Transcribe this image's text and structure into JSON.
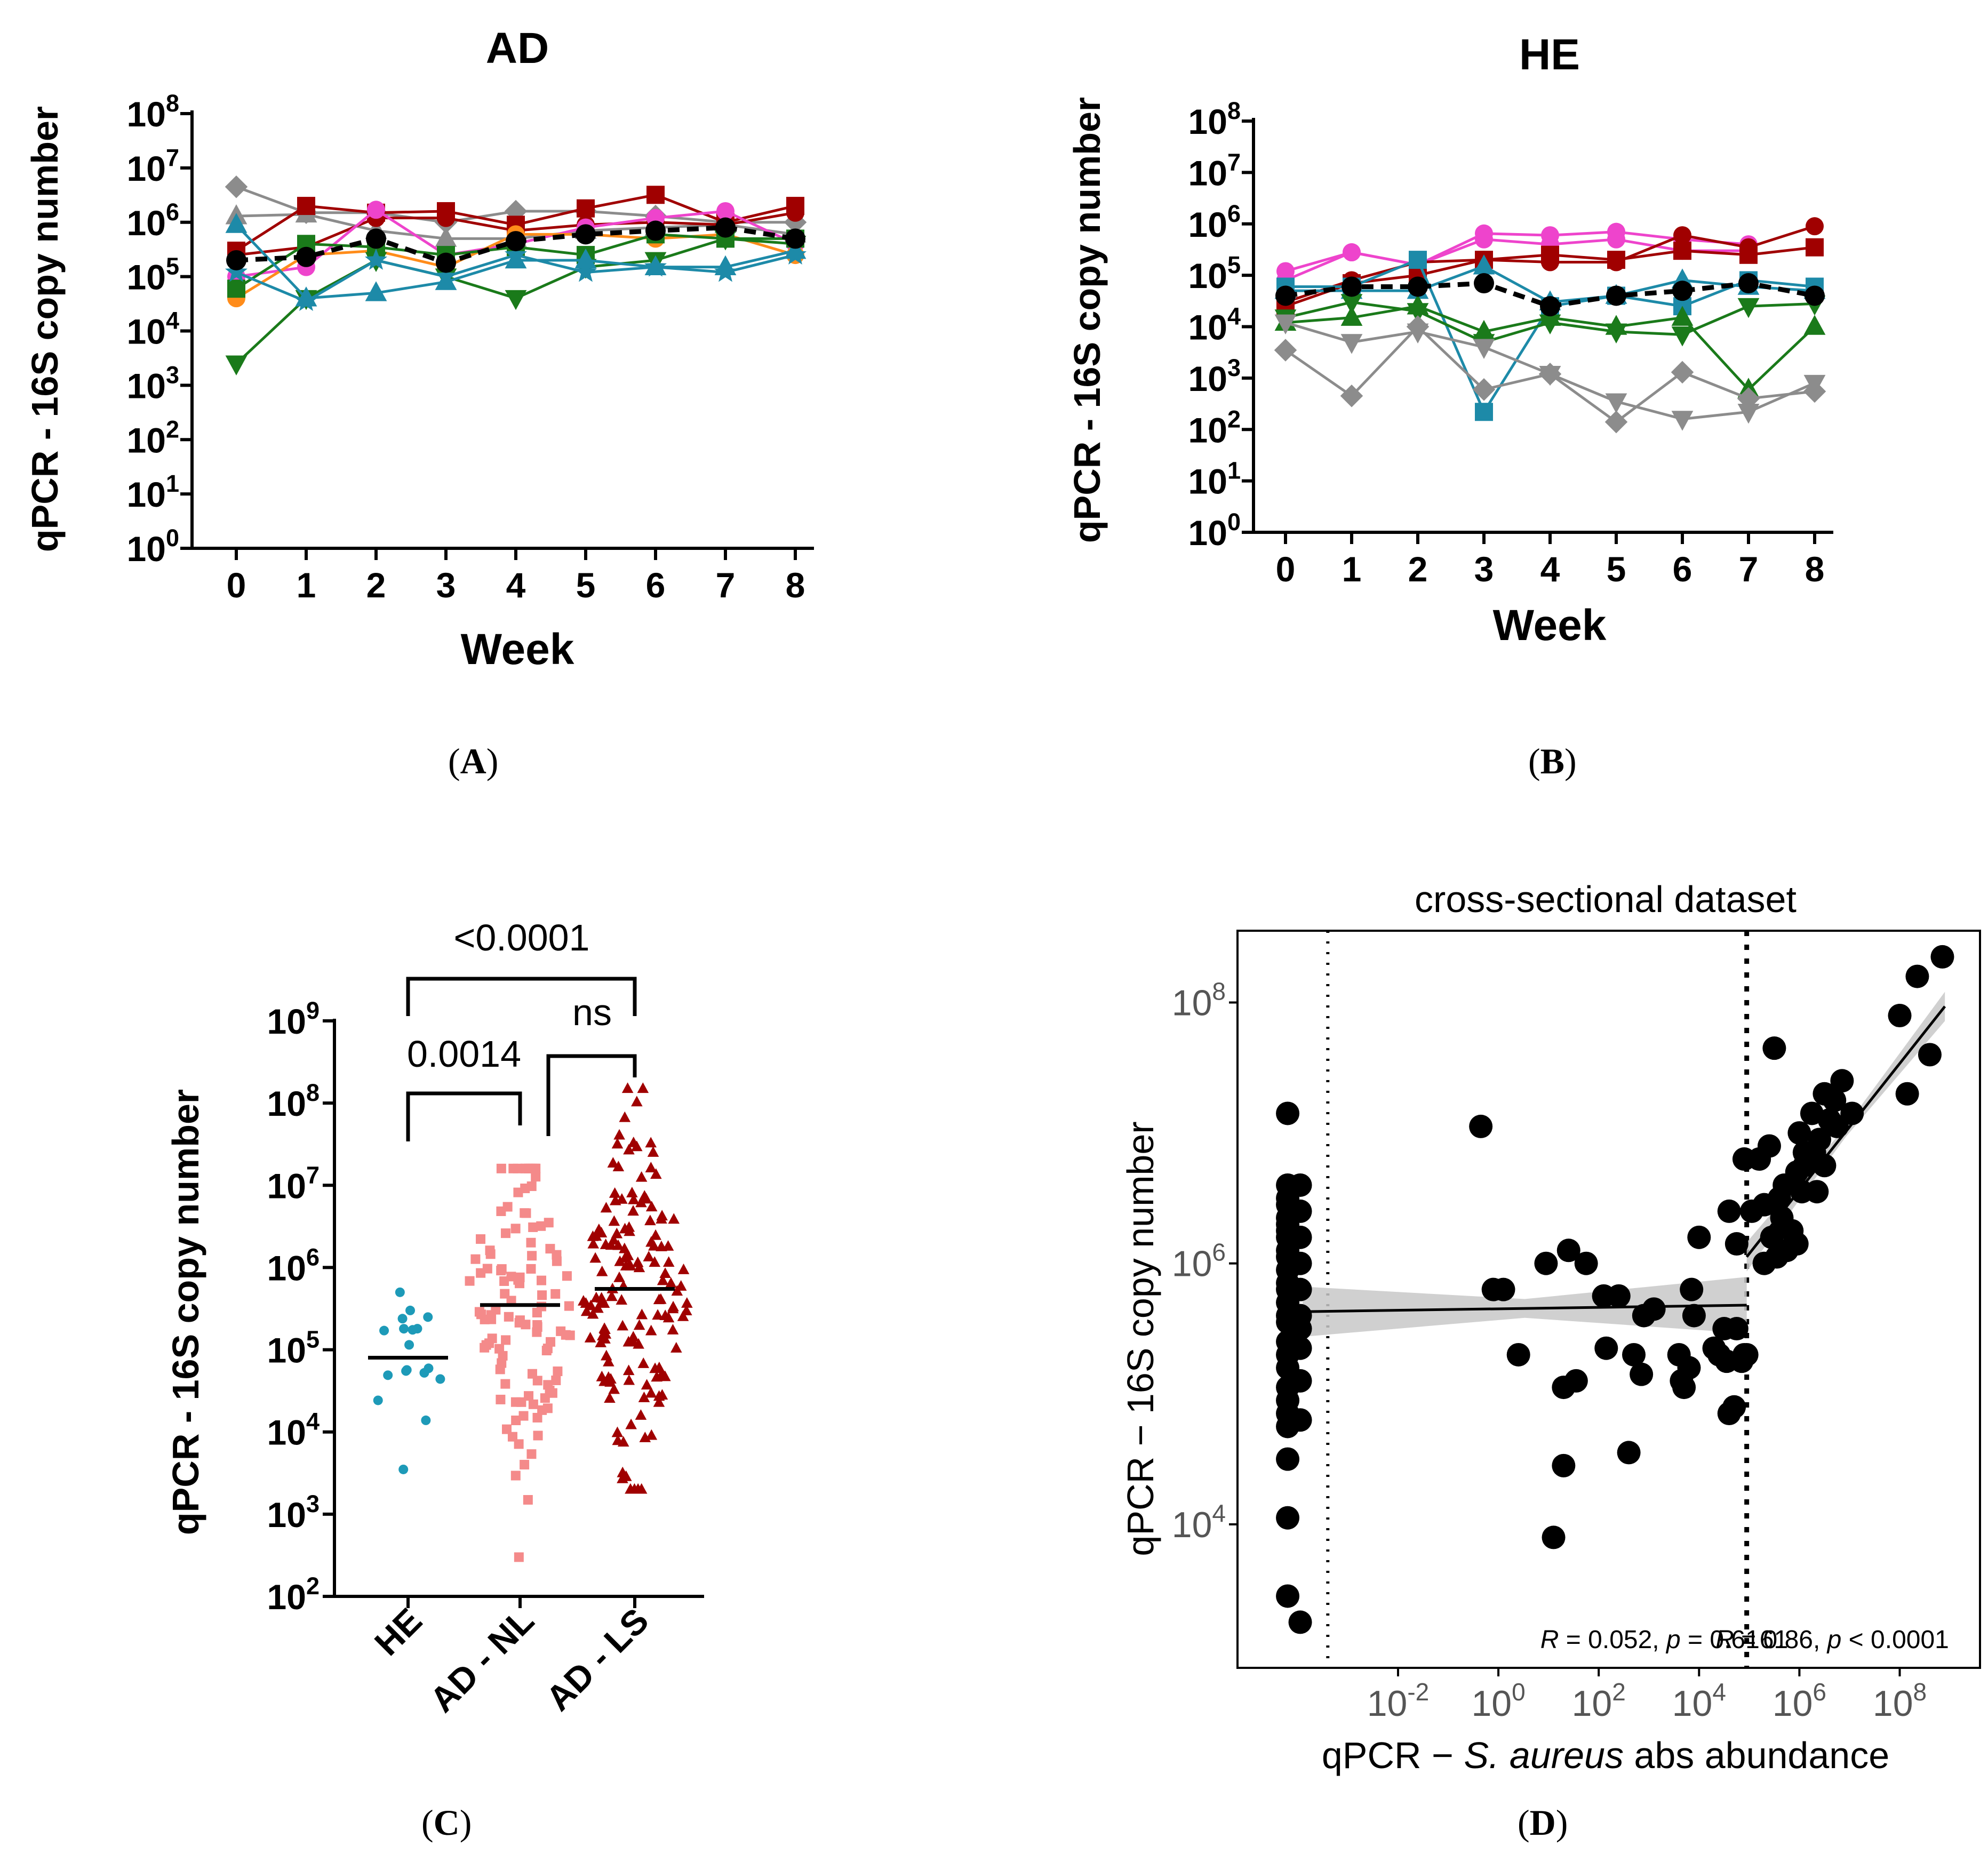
{
  "chart_data": [
    {
      "id": "A",
      "type": "line",
      "title": "AD",
      "xlabel": "Week",
      "ylabel": "qPCR - 16S copy number",
      "yscale": "log10",
      "ylim": [
        1,
        100000000
      ],
      "x": [
        0,
        1,
        2,
        3,
        4,
        5,
        6,
        7,
        8
      ],
      "yticks": [
        [
          "10",
          "0"
        ],
        [
          "10",
          "1"
        ],
        [
          "10",
          "2"
        ],
        [
          "10",
          "3"
        ],
        [
          "10",
          "4"
        ],
        [
          "10",
          "5"
        ],
        [
          "10",
          "6"
        ],
        [
          "10",
          "7"
        ],
        [
          "10",
          "8"
        ]
      ],
      "series": [
        {
          "name": "gray-diamond",
          "color": "#8c8c8c",
          "marker": "diamond",
          "values": [
            4500000,
            1500000,
            1500000,
            1000000,
            1600000,
            1600000,
            1300000,
            1000000,
            1000000
          ]
        },
        {
          "name": "gray-triangle",
          "color": "#8c8c8c",
          "marker": "triangle",
          "values": [
            1300000,
            1400000,
            700000,
            500000,
            500000,
            700000,
            800000,
            900000,
            600000
          ]
        },
        {
          "name": "darkred-square",
          "color": "#a00000",
          "marker": "square",
          "values": [
            300000,
            2000000,
            1500000,
            1600000,
            900000,
            1800000,
            3200000,
            1000000,
            2000000
          ]
        },
        {
          "name": "darkred-circle",
          "color": "#a00000",
          "marker": "circle",
          "values": [
            250000,
            350000,
            1200000,
            1200000,
            700000,
            900000,
            1000000,
            900000,
            1500000
          ]
        },
        {
          "name": "pink-circle",
          "color": "#ee44cc",
          "marker": "circle",
          "values": [
            100000,
            150000,
            1700000,
            250000,
            400000,
            800000,
            1200000,
            1600000,
            400000
          ]
        },
        {
          "name": "orange-hexagon",
          "color": "#ff8c1a",
          "marker": "circle",
          "values": [
            40000,
            250000,
            300000,
            150000,
            600000,
            600000,
            500000,
            600000,
            250000
          ]
        },
        {
          "name": "green-square",
          "color": "#1a7a1a",
          "marker": "square",
          "values": [
            60000,
            400000,
            350000,
            250000,
            350000,
            250000,
            600000,
            500000,
            500000
          ]
        },
        {
          "name": "green-triangle-down",
          "color": "#1a7a1a",
          "marker": "triangle-down",
          "values": [
            2500,
            40000,
            200000,
            100000,
            40000,
            150000,
            200000,
            500000,
            400000
          ]
        },
        {
          "name": "teal-triangle",
          "color": "#1d8aa8",
          "marker": "triangle",
          "values": [
            900000,
            40000,
            50000,
            80000,
            200000,
            200000,
            150000,
            150000,
            300000
          ]
        },
        {
          "name": "teal-star",
          "color": "#1d8aa8",
          "marker": "star",
          "values": [
            120000,
            35000,
            200000,
            100000,
            250000,
            120000,
            150000,
            120000,
            250000
          ]
        },
        {
          "name": "black-dashed-mean",
          "color": "#000000",
          "marker": "circle",
          "dashed": true,
          "values": [
            200000,
            230000,
            500000,
            180000,
            450000,
            600000,
            700000,
            800000,
            500000
          ]
        }
      ]
    },
    {
      "id": "B",
      "type": "line",
      "title": "HE",
      "xlabel": "Week",
      "ylabel": "qPCR - 16S copy number",
      "yscale": "log10",
      "ylim": [
        1,
        100000000
      ],
      "x": [
        0,
        1,
        2,
        3,
        4,
        5,
        6,
        7,
        8
      ],
      "yticks": [
        [
          "10",
          "0"
        ],
        [
          "10",
          "1"
        ],
        [
          "10",
          "2"
        ],
        [
          "10",
          "3"
        ],
        [
          "10",
          "4"
        ],
        [
          "10",
          "5"
        ],
        [
          "10",
          "6"
        ],
        [
          "10",
          "7"
        ],
        [
          "10",
          "8"
        ]
      ],
      "series": [
        {
          "name": "pink-circle",
          "color": "#ee44cc",
          "marker": "circle",
          "values": [
            120000,
            280000,
            160000,
            650000,
            600000,
            700000,
            500000,
            400000,
            null
          ]
        },
        {
          "name": "pink-line-2",
          "color": "#ee44cc",
          "marker": "circle",
          "values": [
            80000,
            280000,
            160000,
            500000,
            400000,
            500000,
            300000,
            300000,
            null
          ]
        },
        {
          "name": "darkred-circle",
          "color": "#a00000",
          "marker": "circle",
          "values": [
            30000,
            80000,
            180000,
            200000,
            180000,
            180000,
            600000,
            350000,
            900000
          ]
        },
        {
          "name": "darkred-square",
          "color": "#a00000",
          "marker": "square",
          "values": [
            25000,
            70000,
            100000,
            200000,
            250000,
            200000,
            300000,
            250000,
            350000
          ]
        },
        {
          "name": "teal-square",
          "color": "#1d8aa8",
          "marker": "square",
          "values": [
            60000,
            60000,
            200000,
            220,
            25000,
            40000,
            25000,
            80000,
            60000
          ]
        },
        {
          "name": "teal-triangle",
          "color": "#1d8aa8",
          "marker": "triangle",
          "values": [
            50000,
            50000,
            50000,
            150000,
            30000,
            40000,
            80000,
            60000,
            50000
          ]
        },
        {
          "name": "green-triangle",
          "color": "#1a7a1a",
          "marker": "triangle",
          "values": [
            12000,
            15000,
            25000,
            8000,
            15000,
            10000,
            15000,
            600,
            10000
          ]
        },
        {
          "name": "green-triangle-down",
          "color": "#1a7a1a",
          "marker": "triangle-down",
          "values": [
            15000,
            30000,
            20000,
            5000,
            12000,
            8000,
            7000,
            25000,
            28000
          ]
        },
        {
          "name": "gray-diamond",
          "color": "#8c8c8c",
          "marker": "diamond",
          "values": [
            3500,
            450,
            10000,
            600,
            1200,
            140,
            1300,
            400,
            550
          ]
        },
        {
          "name": "gray-triangle-down",
          "color": "#8c8c8c",
          "marker": "triangle-down",
          "values": [
            12000,
            5000,
            8000,
            4000,
            1200,
            350,
            160,
            220,
            800
          ]
        },
        {
          "name": "black-dashed-mean",
          "color": "#000000",
          "marker": "circle",
          "dashed": true,
          "values": [
            40000,
            60000,
            60000,
            70000,
            25000,
            40000,
            50000,
            70000,
            40000
          ]
        }
      ]
    },
    {
      "id": "C",
      "type": "scatter",
      "ylabel": "qPCR - 16S copy number",
      "yscale": "log10",
      "ylim": [
        100,
        1000000000
      ],
      "yticks": [
        [
          "10",
          "2"
        ],
        [
          "10",
          "3"
        ],
        [
          "10",
          "4"
        ],
        [
          "10",
          "5"
        ],
        [
          "10",
          "6"
        ],
        [
          "10",
          "7"
        ],
        [
          "10",
          "8"
        ],
        [
          "10",
          "9"
        ]
      ],
      "categories": [
        "HE",
        "AD - NL",
        "AD - LS"
      ],
      "groups": [
        {
          "name": "HE",
          "color": "#1d9ab8",
          "marker": "circle",
          "median": 80000,
          "min": 3500,
          "max": 500000,
          "n": 18
        },
        {
          "name": "AD - NL",
          "color": "#f48a8a",
          "marker": "square",
          "median": 350000,
          "min": 300,
          "max": 16000000,
          "n": 110
        },
        {
          "name": "AD - LS",
          "color": "#a00000",
          "marker": "triangle",
          "median": 550000,
          "min": 2000,
          "max": 150000000,
          "n": 150
        }
      ],
      "comparisons": [
        {
          "groups": [
            "HE",
            "AD - NL"
          ],
          "label": "0.0014"
        },
        {
          "groups": [
            "AD - NL",
            "AD - LS"
          ],
          "label": "ns"
        },
        {
          "groups": [
            "HE",
            "AD - LS"
          ],
          "label": "<0.0001"
        }
      ]
    },
    {
      "id": "D",
      "type": "scatter",
      "title": "cross-sectional dataset",
      "xlabel_pre": "qPCR − ",
      "xlabel_italic": "S. aureus",
      "xlabel_post": " abs abundance",
      "ylabel": "qPCR − 16S copy number",
      "xscale": "log10",
      "yscale": "log10",
      "xlim_log10": [
        -5.2,
        9.6
      ],
      "ylim_log10": [
        2.9,
        8.55
      ],
      "xticks": [
        [
          "10",
          "-2"
        ],
        [
          "10",
          "0"
        ],
        [
          "10",
          "2"
        ],
        [
          "10",
          "4"
        ],
        [
          "10",
          "6"
        ],
        [
          "10",
          "8"
        ]
      ],
      "yticks": [
        [
          "10",
          "4"
        ],
        [
          "10",
          "6"
        ],
        [
          "10",
          "8"
        ]
      ],
      "vlines_log10": [
        -3.4,
        4.95
      ],
      "fits": [
        {
          "from_log10": -3.9,
          "to_log10": 4.95,
          "y_from_log10": 5.63,
          "y_to_log10": 5.68,
          "band": 0.12
        },
        {
          "from_log10": 4.95,
          "to_log10": 8.9,
          "y_from_log10": 6.05,
          "y_to_log10": 7.97,
          "band": 0.08
        }
      ],
      "annotations": [
        {
          "italic": "R",
          "text1": " = 0.052, ",
          "italic2": "p",
          "text2": " = 0.6161"
        },
        {
          "italic": "R",
          "text1": " = 0.86, ",
          "italic2": "p",
          "text2": " < 0.0001"
        }
      ],
      "points_log10": [
        [
          -4.2,
          7.15
        ],
        [
          -4.2,
          6.6
        ],
        [
          -4.2,
          6.5
        ],
        [
          -4.2,
          6.45
        ],
        [
          -4.2,
          6.35
        ],
        [
          -4.2,
          6.3
        ],
        [
          -4.2,
          6.25
        ],
        [
          -4.2,
          6.2
        ],
        [
          -4.2,
          6.1
        ],
        [
          -4.2,
          6.05
        ],
        [
          -4.2,
          5.95
        ],
        [
          -4.2,
          5.85
        ],
        [
          -4.2,
          5.8
        ],
        [
          -4.2,
          5.7
        ],
        [
          -4.2,
          5.6
        ],
        [
          -4.2,
          5.55
        ],
        [
          -4.2,
          5.4
        ],
        [
          -4.2,
          5.3
        ],
        [
          -4.2,
          5.2
        ],
        [
          -4.2,
          5.05
        ],
        [
          -4.2,
          4.95
        ],
        [
          -4.2,
          4.85
        ],
        [
          -4.2,
          4.75
        ],
        [
          -4.2,
          4.5
        ],
        [
          -4.2,
          4.05
        ],
        [
          -4.2,
          3.45
        ],
        [
          -3.95,
          6.6
        ],
        [
          -3.95,
          6.4
        ],
        [
          -3.95,
          6.2
        ],
        [
          -3.95,
          6.0
        ],
        [
          -3.95,
          5.8
        ],
        [
          -3.95,
          5.6
        ],
        [
          -3.95,
          5.5
        ],
        [
          -3.95,
          5.35
        ],
        [
          -3.95,
          5.1
        ],
        [
          -3.95,
          4.8
        ],
        [
          -3.95,
          3.25
        ],
        [
          -0.35,
          7.05
        ],
        [
          -0.1,
          5.8
        ],
        [
          0.1,
          5.8
        ],
        [
          0.4,
          5.3
        ],
        [
          0.95,
          6.0
        ],
        [
          1.3,
          4.45
        ],
        [
          1.1,
          3.9
        ],
        [
          1.3,
          5.05
        ],
        [
          1.4,
          6.1
        ],
        [
          1.55,
          5.1
        ],
        [
          1.75,
          6.0
        ],
        [
          2.1,
          5.75
        ],
        [
          2.4,
          5.75
        ],
        [
          2.6,
          4.55
        ],
        [
          2.7,
          5.3
        ],
        [
          3.6,
          5.3
        ],
        [
          3.8,
          5.2
        ],
        [
          3.7,
          5.05
        ],
        [
          4.0,
          6.2
        ],
        [
          3.85,
          5.8
        ],
        [
          4.4,
          5.3
        ],
        [
          4.5,
          5.5
        ],
        [
          4.6,
          6.4
        ],
        [
          4.3,
          5.35
        ],
        [
          4.7,
          4.9
        ],
        [
          4.55,
          5.25
        ],
        [
          3.65,
          5.1
        ],
        [
          2.85,
          5.15
        ],
        [
          2.9,
          5.6
        ],
        [
          2.15,
          5.35
        ],
        [
          3.1,
          5.65
        ],
        [
          3.9,
          5.6
        ],
        [
          4.75,
          5.5
        ],
        [
          4.85,
          5.25
        ],
        [
          4.9,
          5.3
        ],
        [
          4.75,
          6.15
        ],
        [
          4.6,
          4.85
        ],
        [
          4.95,
          5.3
        ],
        [
          4.9,
          6.8
        ],
        [
          5.05,
          6.4
        ],
        [
          5.2,
          6.8
        ],
        [
          5.3,
          6.45
        ],
        [
          5.4,
          6.9
        ],
        [
          5.3,
          6.0
        ],
        [
          5.6,
          6.5
        ],
        [
          5.65,
          6.35
        ],
        [
          5.75,
          6.1
        ],
        [
          5.85,
          6.25
        ],
        [
          5.95,
          6.7
        ],
        [
          6.0,
          7.0
        ],
        [
          6.1,
          6.85
        ],
        [
          6.05,
          6.55
        ],
        [
          6.25,
          7.15
        ],
        [
          6.4,
          6.95
        ],
        [
          6.5,
          7.3
        ],
        [
          6.6,
          7.1
        ],
        [
          6.7,
          7.25
        ],
        [
          6.85,
          7.4
        ],
        [
          5.5,
          7.65
        ],
        [
          6.1,
          6.75
        ],
        [
          5.7,
          6.6
        ],
        [
          6.3,
          6.85
        ],
        [
          5.45,
          6.2
        ],
        [
          5.55,
          6.05
        ],
        [
          8.0,
          7.9
        ],
        [
          8.35,
          8.2
        ],
        [
          8.15,
          7.3
        ],
        [
          6.5,
          6.75
        ],
        [
          8.6,
          7.6
        ],
        [
          8.85,
          8.35
        ],
        [
          7.05,
          7.15
        ],
        [
          6.75,
          7.05
        ],
        [
          6.35,
          6.55
        ],
        [
          5.95,
          6.15
        ]
      ]
    }
  ],
  "panel_labels": [
    "A",
    "B",
    "C",
    "D"
  ]
}
